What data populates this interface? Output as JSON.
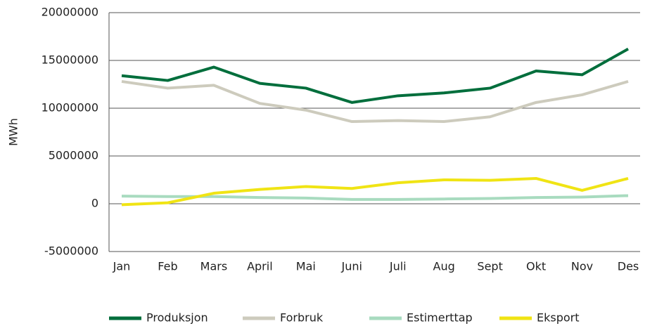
{
  "chart_data": {
    "type": "line",
    "y_label": "MWh",
    "categories": [
      "Jan",
      "Feb",
      "Mars",
      "April",
      "Mai",
      "Juni",
      "Juli",
      "Aug",
      "Sept",
      "Okt",
      "Nov",
      "Des"
    ],
    "series": [
      {
        "name": "Produksjon",
        "color": "#006e3c",
        "values": [
          13400000,
          12900000,
          14300000,
          12600000,
          12100000,
          10600000,
          11300000,
          11600000,
          12100000,
          13900000,
          13500000,
          16200000
        ]
      },
      {
        "name": "Forbruk",
        "color": "#cdcbbd",
        "values": [
          12800000,
          12100000,
          12400000,
          10500000,
          9800000,
          8600000,
          8700000,
          8600000,
          9100000,
          10600000,
          11400000,
          12800000
        ]
      },
      {
        "name": "Estimerttap",
        "color": "#a8dbbf",
        "values": [
          800000,
          750000,
          750000,
          650000,
          600000,
          450000,
          450000,
          500000,
          550000,
          650000,
          700000,
          850000
        ]
      },
      {
        "name": "Eksport",
        "color": "#f0e414",
        "values": [
          -100000,
          100000,
          1100000,
          1500000,
          1800000,
          1600000,
          2200000,
          2500000,
          2450000,
          2650000,
          1400000,
          2650000
        ]
      }
    ],
    "ylim": [
      -5000000,
      20000000
    ],
    "yticks": [
      -5000000,
      0,
      5000000,
      10000000,
      15000000,
      20000000
    ],
    "grid": true,
    "legend": "bottom"
  }
}
